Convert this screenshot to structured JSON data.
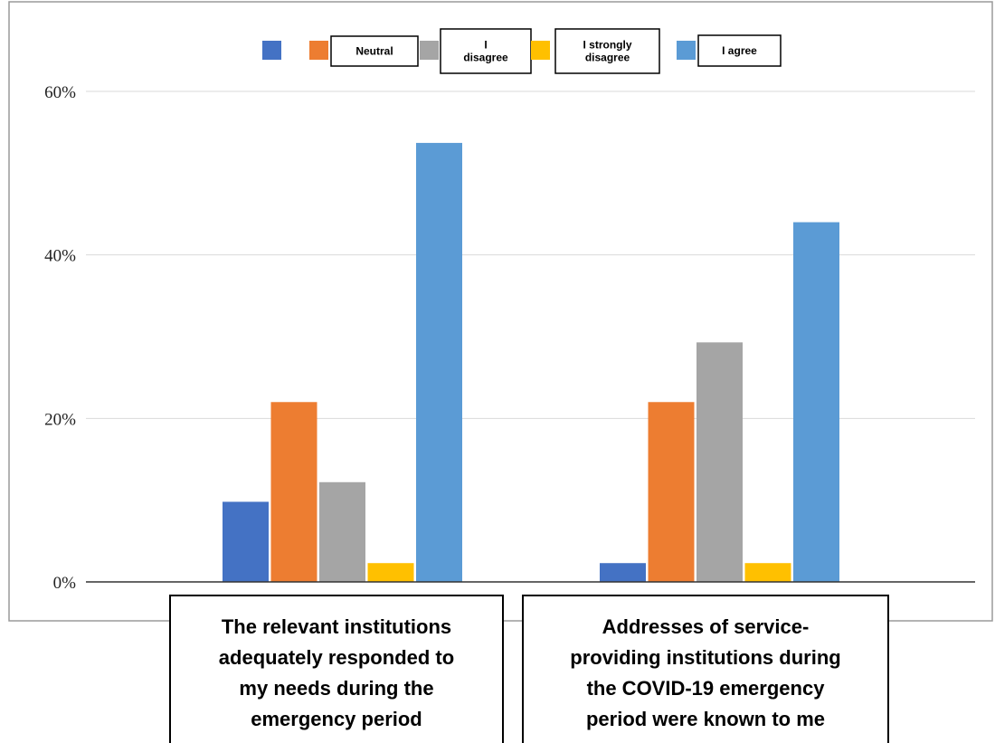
{
  "chart_data": {
    "type": "bar",
    "categories": [
      "The relevant institutions adequately responded to my needs during the emergency period",
      "Addresses of service-providing institutions during the COVID-19 emergency period were known to me"
    ],
    "category_label_lines": [
      [
        "The relevant institutions",
        "adequately responded to",
        "my needs during the",
        "emergency period"
      ],
      [
        "Addresses of service-",
        "providing institutions during",
        "the COVID-19 emergency",
        "period were known to me"
      ]
    ],
    "series": [
      {
        "name": "",
        "color": "#4472c4",
        "values": [
          9.8,
          2.3
        ]
      },
      {
        "name": "Neutral",
        "color": "#ed7d31",
        "values": [
          22,
          22
        ]
      },
      {
        "name": "I disagree",
        "color": "#a5a5a5",
        "values": [
          12.2,
          29.3
        ]
      },
      {
        "name": "I strongly disagree",
        "color": "#ffc000",
        "values": [
          2.3,
          2.3
        ]
      },
      {
        "name": "I agree",
        "color": "#5b9bd5",
        "values": [
          53.7,
          44
        ]
      }
    ],
    "legend_label_lines": [
      [],
      [
        "Neutral"
      ],
      [
        "I",
        "disagree"
      ],
      [
        "I strongly",
        "disagree"
      ],
      [
        "I agree"
      ]
    ],
    "y_ticks": [
      "0%",
      "20%",
      "40%",
      "60%"
    ],
    "ylim": [
      0,
      60
    ],
    "grid": true,
    "legend_position": "top",
    "title": "",
    "xlabel": "",
    "ylabel": ""
  }
}
